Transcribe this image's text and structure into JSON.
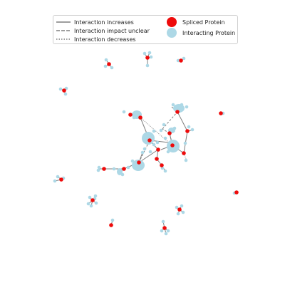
{
  "colors": {
    "spliced": "#ee0b0b",
    "interacting": "#add8e6",
    "edge": "#7f7f7f"
  },
  "legend": {
    "increases_label": "Interaction increases",
    "unclear_label": "Interaction impact unclear",
    "decreases_label": "Interaction decreases",
    "spliced_label": "Spliced Protein",
    "interacting_label": "Interacting Protein"
  },
  "edge_styles": {
    "increases": "solid",
    "unclear": "dashed",
    "decreases": "dotted"
  }
}
